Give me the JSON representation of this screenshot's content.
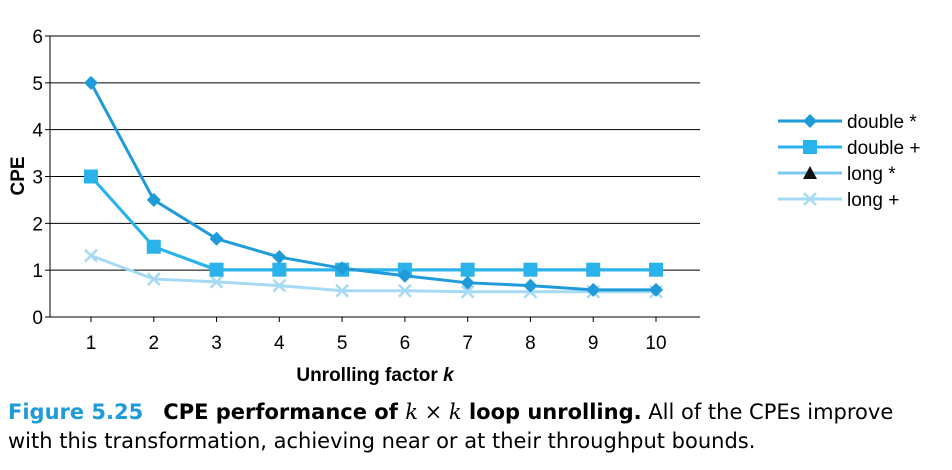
{
  "chart_data": {
    "type": "line",
    "xlabel": "Unrolling factor k",
    "ylabel": "CPE",
    "x": [
      1,
      2,
      3,
      4,
      5,
      6,
      7,
      8,
      9,
      10
    ],
    "xlim": [
      1,
      10
    ],
    "ylim": [
      0,
      6
    ],
    "yticks": [
      0,
      1,
      2,
      3,
      4,
      5,
      6
    ],
    "grid": "horizontal",
    "legend_position": "right",
    "series": [
      {
        "name": "double *",
        "marker": "diamond",
        "color": "#1e9bd8",
        "values": [
          5.0,
          2.5,
          1.67,
          1.28,
          1.04,
          0.88,
          0.73,
          0.67,
          0.58,
          0.58
        ]
      },
      {
        "name": "double +",
        "marker": "square",
        "color": "#29b3ea",
        "values": [
          3.0,
          1.5,
          1.01,
          1.01,
          1.01,
          1.01,
          1.01,
          1.01,
          1.01,
          1.01
        ]
      },
      {
        "name": "long *",
        "marker": "triangle",
        "color": "#7cc9ee",
        "values": [
          3.0,
          1.5,
          1.0,
          1.0,
          1.0,
          1.0,
          1.0,
          1.0,
          1.0,
          1.0
        ]
      },
      {
        "name": "long +",
        "marker": "x",
        "color": "#a6daf4",
        "values": [
          1.31,
          0.81,
          0.75,
          0.67,
          0.56,
          0.56,
          0.54,
          0.54,
          0.54,
          0.54
        ]
      }
    ]
  },
  "caption": {
    "figure_number": "Figure 5.25",
    "title_pre": "CPE performance of",
    "math_k1": "k",
    "math_times": "×",
    "math_k2": "k",
    "title_post": "loop unrolling.",
    "body": "All of the CPEs improve with this transformation, achieving near or at their throughput bounds."
  }
}
